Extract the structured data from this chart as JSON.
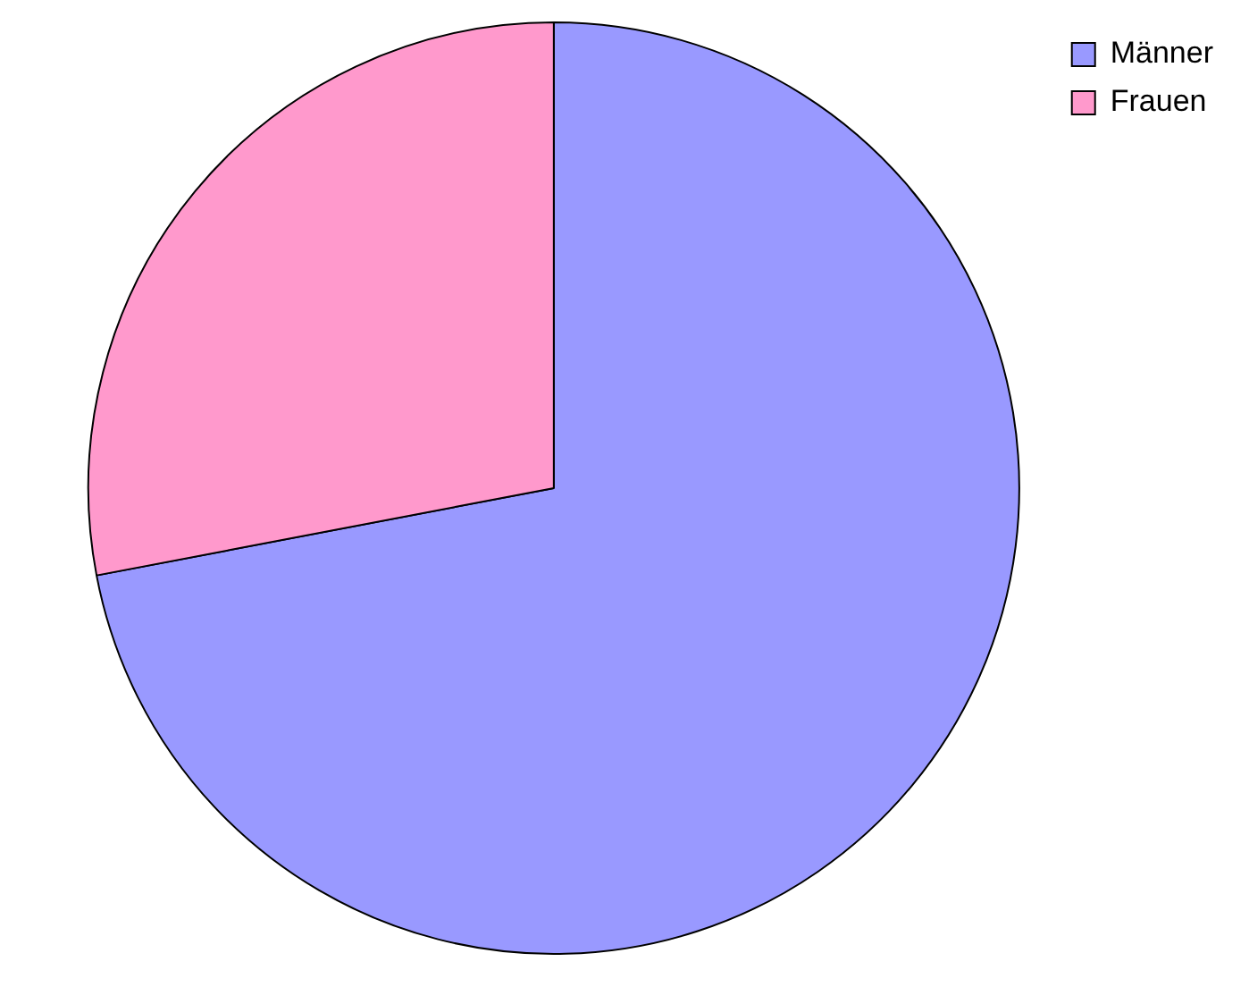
{
  "chart_data": {
    "type": "pie",
    "categories": [
      "Männer",
      "Frauen"
    ],
    "values": [
      72,
      28
    ],
    "colors": [
      "#9999ff",
      "#ff99cc"
    ],
    "legend": "top right"
  }
}
